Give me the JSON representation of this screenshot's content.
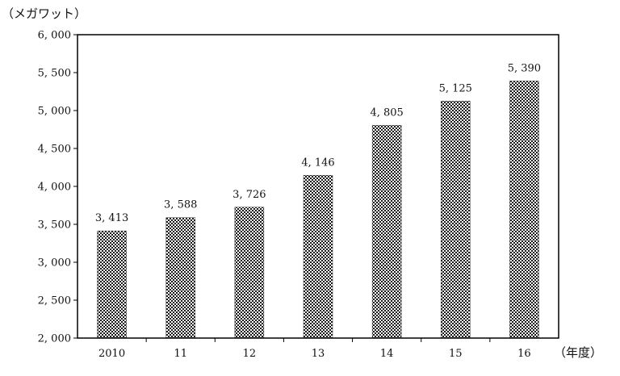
{
  "chart_data": {
    "type": "bar",
    "title": "",
    "ylabel": "（メガワット）",
    "xlabel": "（年度）",
    "categories": [
      "2010",
      "11",
      "12",
      "13",
      "14",
      "15",
      "16"
    ],
    "values": [
      3413,
      3588,
      3726,
      4146,
      4805,
      5125,
      5390
    ],
    "value_labels": [
      "3, 413",
      "3, 588",
      "3, 726",
      "4, 146",
      "4, 805",
      "5, 125",
      "5, 390"
    ],
    "ylim": [
      2000,
      6000
    ],
    "yticks": [
      2000,
      2500,
      3000,
      3500,
      4000,
      4500,
      5000,
      5500,
      6000
    ],
    "ytick_labels": [
      "2, 000",
      "2, 500",
      "3, 000",
      "3, 500",
      "4, 000",
      "4, 500",
      "5, 000",
      "5, 500",
      "6, 000"
    ],
    "grid": false,
    "legend": "none",
    "bar_fill": "checkered-pattern",
    "colors": {
      "bar_dark": "#1a1a1a",
      "bar_light": "#ffffff",
      "axis": "#000000"
    }
  }
}
